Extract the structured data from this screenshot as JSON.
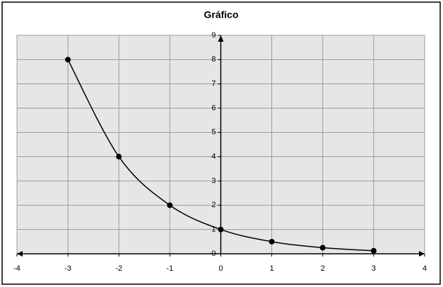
{
  "chart_data": {
    "type": "scatter",
    "title": "Gráfico",
    "x": [
      -3,
      -2,
      -1,
      0,
      1,
      2,
      3
    ],
    "values": [
      8,
      4,
      2,
      1,
      0.5,
      0.25,
      0.125
    ],
    "color": "#000000",
    "xlim": [
      -4,
      4
    ],
    "xticks": [
      -4,
      -3,
      -2,
      -1,
      0,
      1,
      2,
      3,
      4
    ],
    "ylim": [
      0,
      9
    ],
    "yticks": [
      0,
      1,
      2,
      3,
      4,
      5,
      6,
      7,
      8,
      9
    ],
    "grid": true
  }
}
